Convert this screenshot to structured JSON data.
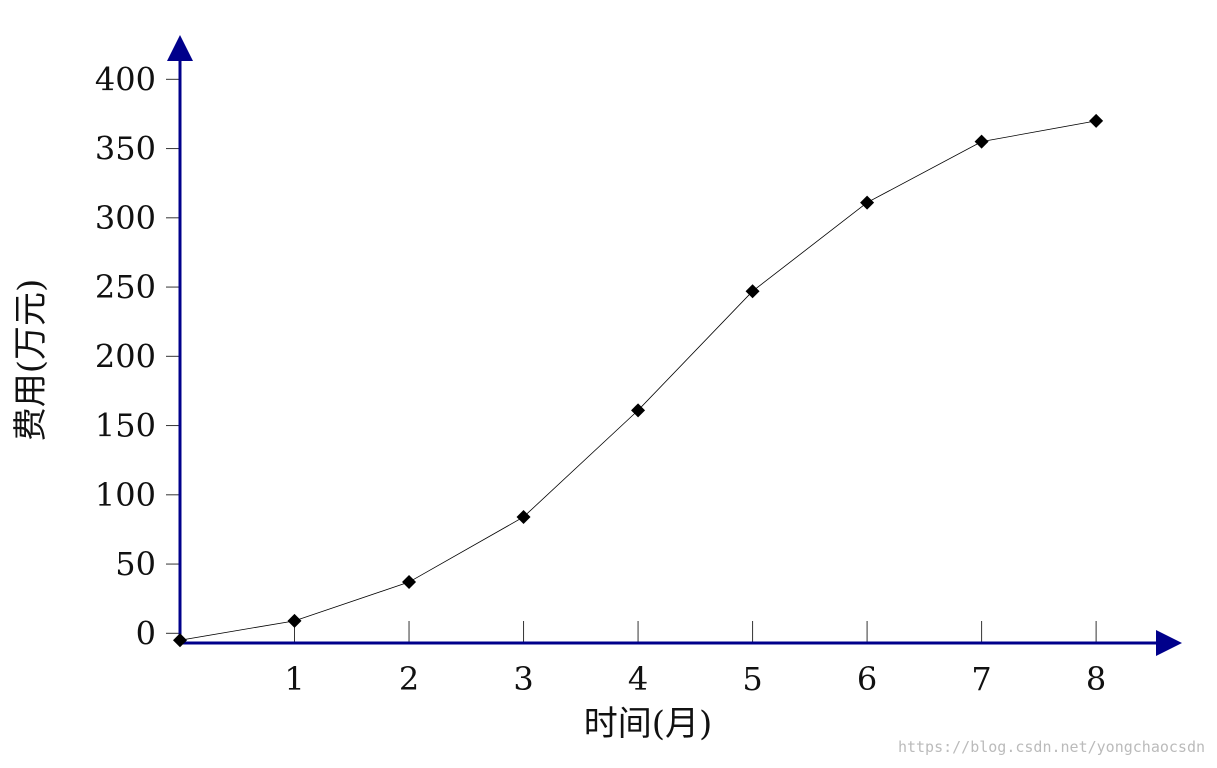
{
  "chart_data": {
    "type": "line",
    "x_label": "时间(月)",
    "y_label": "费用(万元)",
    "x": [
      0,
      1,
      2,
      3,
      4,
      5,
      6,
      7,
      8
    ],
    "series": [
      {
        "name": null,
        "color": "#000000",
        "values": [
          -5,
          9,
          37,
          84,
          161,
          247,
          311,
          355,
          370
        ]
      }
    ],
    "xlim": [
      0,
      8.75
    ],
    "ylim": [
      -7,
      432
    ],
    "xticks": [
      1,
      2,
      3,
      4,
      5,
      6,
      7,
      8
    ],
    "yticks": [
      0,
      50,
      100,
      150,
      200,
      250,
      300,
      350,
      400
    ],
    "axis_color": "#00008b",
    "marker": "diamond",
    "watermark": "https://blog.csdn.net/yongchaocsdn"
  }
}
